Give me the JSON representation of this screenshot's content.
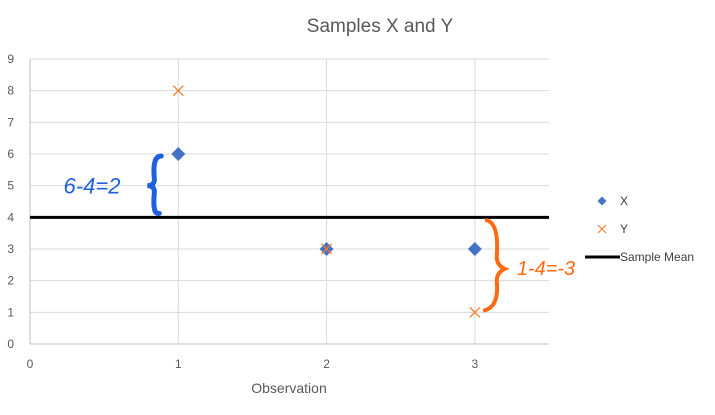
{
  "chart_data": {
    "type": "scatter",
    "title": "Samples X and Y",
    "xlabel": "Observation",
    "ylabel": "",
    "xlim": [
      0,
      3.5
    ],
    "ylim": [
      0,
      9
    ],
    "xticks": [
      0,
      1,
      2,
      3
    ],
    "yticks": [
      0,
      1,
      2,
      3,
      4,
      5,
      6,
      7,
      8,
      9
    ],
    "grid": true,
    "legend_position": "right",
    "series": [
      {
        "name": "X",
        "marker": "diamond",
        "color": "#4472c4",
        "x": [
          1,
          2,
          3
        ],
        "y": [
          6,
          3,
          3
        ]
      },
      {
        "name": "Y",
        "marker": "x",
        "color": "#ed7d31",
        "x": [
          1,
          2,
          3
        ],
        "y": [
          8,
          3,
          1
        ]
      },
      {
        "name": "Sample Mean",
        "type": "hline",
        "color": "#000000",
        "y": 4
      }
    ],
    "annotations": [
      {
        "text": "6-4=2",
        "color": "#1f5fe0",
        "x": 1,
        "y_from": 4,
        "y_to": 6
      },
      {
        "text": "1-4=-3",
        "color": "#ff6a13",
        "x": 3,
        "y_from": 1,
        "y_to": 4
      }
    ]
  }
}
